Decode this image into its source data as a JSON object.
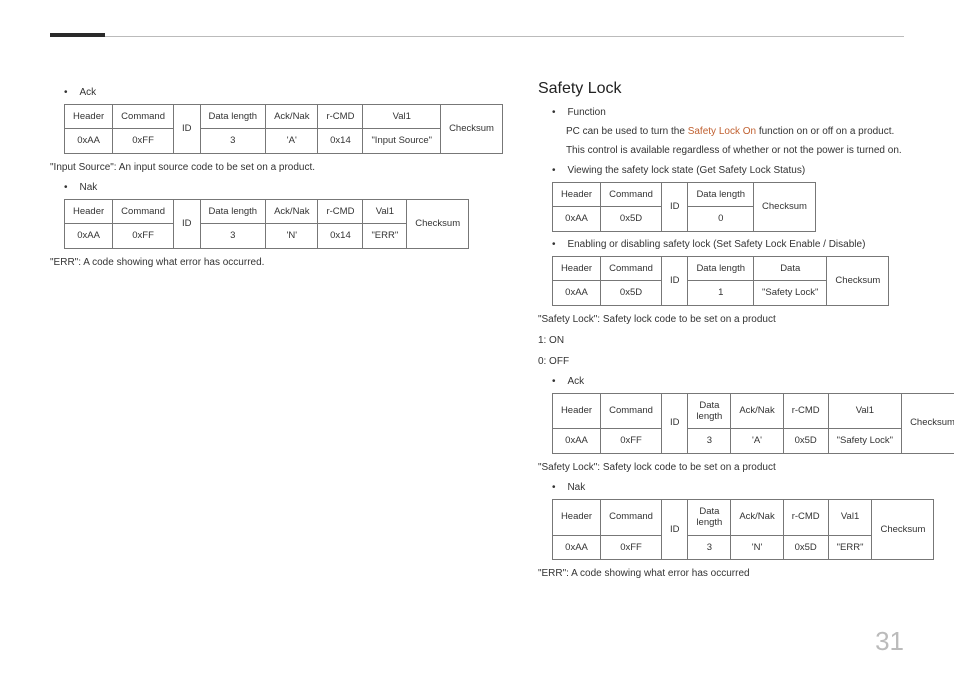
{
  "page_number": "31",
  "left": {
    "ack_label": "Ack",
    "nak_label": "Nak",
    "hdr": [
      "Header",
      "Command",
      "ID",
      "Data length",
      "Ack/Nak",
      "r-CMD",
      "Val1",
      "Checksum"
    ],
    "ack_row": [
      "0xAA",
      "0xFF",
      "",
      "3",
      "'A'",
      "0x14",
      "\"Input Source\""
    ],
    "nak_row": [
      "0xAA",
      "0xFF",
      "",
      "3",
      "'N'",
      "0x14",
      "\"ERR\""
    ],
    "note1": "\"Input Source\": An input source code to be set on a product.",
    "note2": "\"ERR\": A code showing what error has occurred."
  },
  "right": {
    "title": "Safety Lock",
    "func_label": "Function",
    "func_line1a": "PC can be used to turn the ",
    "func_line1_accent": "Safety Lock On",
    "func_line1b": " function on or off on a product.",
    "func_line2": "This control is available regardless of whether or not the power is turned on.",
    "view_label": "Viewing the safety lock state (Get Safety Lock Status)",
    "t1_hdr": [
      "Header",
      "Command",
      "ID",
      "Data length",
      "Checksum"
    ],
    "t1_row": [
      "0xAA",
      "0x5D",
      "",
      "0"
    ],
    "set_label": "Enabling or disabling safety lock (Set Safety Lock Enable / Disable)",
    "t2_hdr": [
      "Header",
      "Command",
      "ID",
      "Data length",
      "Data",
      "Checksum"
    ],
    "t2_row": [
      "0xAA",
      "0x5D",
      "",
      "1",
      "\"Safety Lock\""
    ],
    "note_sl": "\"Safety Lock\": Safety lock code to be set on a product",
    "on": "1: ON",
    "off": "0: OFF",
    "ack_label": "Ack",
    "nak_label": "Nak",
    "hdr8": [
      "Header",
      "Command",
      "ID",
      "Data length",
      "Ack/Nak",
      "r-CMD",
      "Val1",
      "Checksum"
    ],
    "ack_row": [
      "0xAA",
      "0xFF",
      "",
      "3",
      "'A'",
      "0x5D",
      "\"Safety Lock\""
    ],
    "nak_row": [
      "0xAA",
      "0xFF",
      "",
      "3",
      "'N'",
      "0x5D",
      "\"ERR\""
    ],
    "note_sl2": "\"Safety Lock\": Safety lock code to be set on a product",
    "note_err": "\"ERR\": A code showing what error has occurred"
  },
  "data_length_2line": "Data\nlength"
}
